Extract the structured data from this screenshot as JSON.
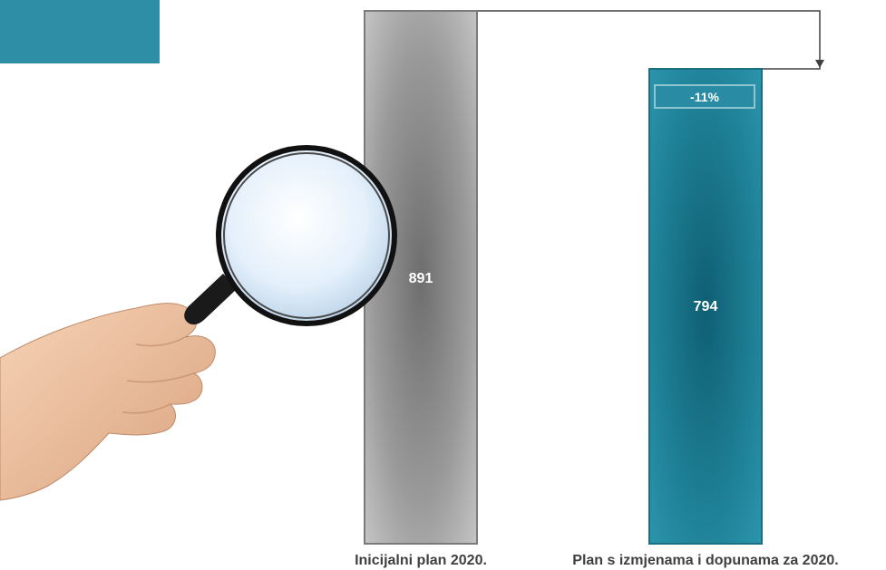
{
  "chart_data": {
    "type": "bar",
    "categories": [
      "Inicijalni plan 2020.",
      "Plan s izmjenama i dopunama za 2020."
    ],
    "values": [
      891,
      794
    ],
    "data_labels": [
      "891",
      "794"
    ],
    "ylim": [
      0,
      891
    ],
    "change_label": "-11%",
    "bar_colors": [
      "#8c8c8c",
      "#1f7f96"
    ],
    "connector_color": "#404040",
    "grid": false
  },
  "decor": {
    "corner_color": "#2e8ea6",
    "illustration": "hand-holding-magnifying-glass"
  }
}
